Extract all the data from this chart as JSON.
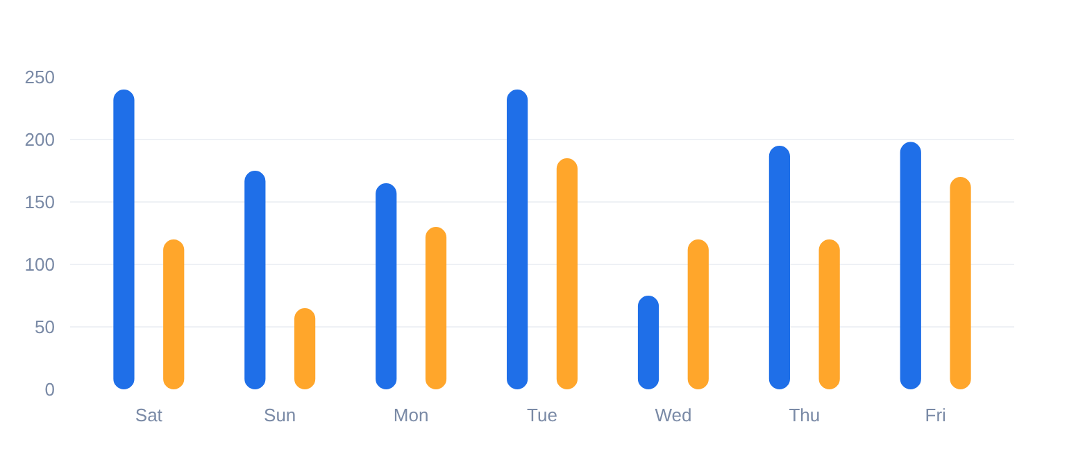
{
  "chart_data": {
    "type": "bar",
    "categories": [
      "Sat",
      "Sun",
      "Mon",
      "Tue",
      "Wed",
      "Thu",
      "Fri"
    ],
    "series": [
      {
        "color": "#1f6fe8",
        "values": [
          240,
          175,
          165,
          240,
          75,
          195,
          198
        ]
      },
      {
        "color": "#ffa62b",
        "values": [
          120,
          65,
          130,
          185,
          120,
          120,
          170
        ]
      }
    ],
    "ylim": [
      0,
      250
    ],
    "yticks": [
      0,
      50,
      100,
      150,
      200,
      250
    ],
    "grid": "y"
  }
}
